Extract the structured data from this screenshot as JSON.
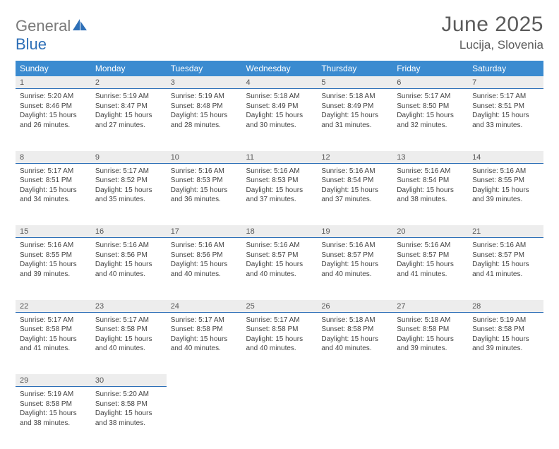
{
  "brand": {
    "part1": "General",
    "part2": "Blue"
  },
  "title": "June 2025",
  "location": "Lucija, Slovenia",
  "day_headers": [
    "Sunday",
    "Monday",
    "Tuesday",
    "Wednesday",
    "Thursday",
    "Friday",
    "Saturday"
  ],
  "header_bg": "#3b8bd0",
  "daynum_bg": "#ededed",
  "daynum_border": "#2d6fb7",
  "weeks": [
    [
      {
        "n": "1",
        "sr": "5:20 AM",
        "ss": "8:46 PM",
        "dl": "15 hours and 26 minutes."
      },
      {
        "n": "2",
        "sr": "5:19 AM",
        "ss": "8:47 PM",
        "dl": "15 hours and 27 minutes."
      },
      {
        "n": "3",
        "sr": "5:19 AM",
        "ss": "8:48 PM",
        "dl": "15 hours and 28 minutes."
      },
      {
        "n": "4",
        "sr": "5:18 AM",
        "ss": "8:49 PM",
        "dl": "15 hours and 30 minutes."
      },
      {
        "n": "5",
        "sr": "5:18 AM",
        "ss": "8:49 PM",
        "dl": "15 hours and 31 minutes."
      },
      {
        "n": "6",
        "sr": "5:17 AM",
        "ss": "8:50 PM",
        "dl": "15 hours and 32 minutes."
      },
      {
        "n": "7",
        "sr": "5:17 AM",
        "ss": "8:51 PM",
        "dl": "15 hours and 33 minutes."
      }
    ],
    [
      {
        "n": "8",
        "sr": "5:17 AM",
        "ss": "8:51 PM",
        "dl": "15 hours and 34 minutes."
      },
      {
        "n": "9",
        "sr": "5:17 AM",
        "ss": "8:52 PM",
        "dl": "15 hours and 35 minutes."
      },
      {
        "n": "10",
        "sr": "5:16 AM",
        "ss": "8:53 PM",
        "dl": "15 hours and 36 minutes."
      },
      {
        "n": "11",
        "sr": "5:16 AM",
        "ss": "8:53 PM",
        "dl": "15 hours and 37 minutes."
      },
      {
        "n": "12",
        "sr": "5:16 AM",
        "ss": "8:54 PM",
        "dl": "15 hours and 37 minutes."
      },
      {
        "n": "13",
        "sr": "5:16 AM",
        "ss": "8:54 PM",
        "dl": "15 hours and 38 minutes."
      },
      {
        "n": "14",
        "sr": "5:16 AM",
        "ss": "8:55 PM",
        "dl": "15 hours and 39 minutes."
      }
    ],
    [
      {
        "n": "15",
        "sr": "5:16 AM",
        "ss": "8:55 PM",
        "dl": "15 hours and 39 minutes."
      },
      {
        "n": "16",
        "sr": "5:16 AM",
        "ss": "8:56 PM",
        "dl": "15 hours and 40 minutes."
      },
      {
        "n": "17",
        "sr": "5:16 AM",
        "ss": "8:56 PM",
        "dl": "15 hours and 40 minutes."
      },
      {
        "n": "18",
        "sr": "5:16 AM",
        "ss": "8:57 PM",
        "dl": "15 hours and 40 minutes."
      },
      {
        "n": "19",
        "sr": "5:16 AM",
        "ss": "8:57 PM",
        "dl": "15 hours and 40 minutes."
      },
      {
        "n": "20",
        "sr": "5:16 AM",
        "ss": "8:57 PM",
        "dl": "15 hours and 41 minutes."
      },
      {
        "n": "21",
        "sr": "5:16 AM",
        "ss": "8:57 PM",
        "dl": "15 hours and 41 minutes."
      }
    ],
    [
      {
        "n": "22",
        "sr": "5:17 AM",
        "ss": "8:58 PM",
        "dl": "15 hours and 41 minutes."
      },
      {
        "n": "23",
        "sr": "5:17 AM",
        "ss": "8:58 PM",
        "dl": "15 hours and 40 minutes."
      },
      {
        "n": "24",
        "sr": "5:17 AM",
        "ss": "8:58 PM",
        "dl": "15 hours and 40 minutes."
      },
      {
        "n": "25",
        "sr": "5:17 AM",
        "ss": "8:58 PM",
        "dl": "15 hours and 40 minutes."
      },
      {
        "n": "26",
        "sr": "5:18 AM",
        "ss": "8:58 PM",
        "dl": "15 hours and 40 minutes."
      },
      {
        "n": "27",
        "sr": "5:18 AM",
        "ss": "8:58 PM",
        "dl": "15 hours and 39 minutes."
      },
      {
        "n": "28",
        "sr": "5:19 AM",
        "ss": "8:58 PM",
        "dl": "15 hours and 39 minutes."
      }
    ],
    [
      {
        "n": "29",
        "sr": "5:19 AM",
        "ss": "8:58 PM",
        "dl": "15 hours and 38 minutes."
      },
      {
        "n": "30",
        "sr": "5:20 AM",
        "ss": "8:58 PM",
        "dl": "15 hours and 38 minutes."
      },
      null,
      null,
      null,
      null,
      null
    ]
  ],
  "labels": {
    "sunrise": "Sunrise:",
    "sunset": "Sunset:",
    "daylight": "Daylight:"
  }
}
